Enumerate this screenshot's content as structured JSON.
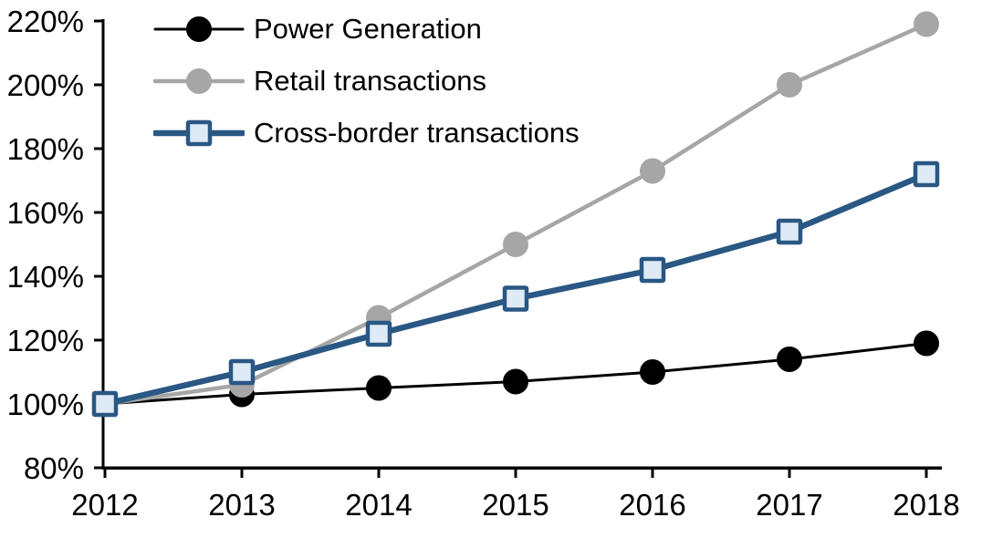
{
  "chart_data": {
    "type": "line",
    "title": "",
    "xlabel": "",
    "ylabel": "",
    "x": [
      2012,
      2013,
      2014,
      2015,
      2016,
      2017,
      2018
    ],
    "xtick_labels": [
      "2012",
      "2013",
      "2014",
      "2015",
      "2016",
      "2017",
      "2018"
    ],
    "ytick_labels_top_to_bottom": [
      "220%",
      "200%",
      "180%",
      "160%",
      "140%",
      "120%",
      "100%",
      "80%"
    ],
    "ylim": [
      80,
      220
    ],
    "ytick_step": 20,
    "grid": false,
    "legend_position": "top-left-inside",
    "series": [
      {
        "name": "Power Generation",
        "values": [
          100,
          103,
          105,
          107,
          110,
          114,
          119
        ],
        "line_color": "#000000",
        "line_width": 3,
        "marker": "circle",
        "marker_fill": "#000000",
        "marker_stroke": "#000000"
      },
      {
        "name": "Retail transactions",
        "values": [
          100,
          106,
          127,
          150,
          173,
          200,
          219
        ],
        "line_color": "#A6A6A6",
        "line_width": 4.5,
        "marker": "circle",
        "marker_fill": "#A6A6A6",
        "marker_stroke": "#A6A6A6"
      },
      {
        "name": "Cross-border transactions",
        "values": [
          100,
          110,
          122,
          133,
          142,
          154,
          172
        ],
        "line_color": "#2A5783",
        "line_width": 6.5,
        "marker": "square",
        "marker_fill": "#DEEBF7",
        "marker_stroke": "#2A5783"
      }
    ],
    "axis_color": "#000000"
  }
}
